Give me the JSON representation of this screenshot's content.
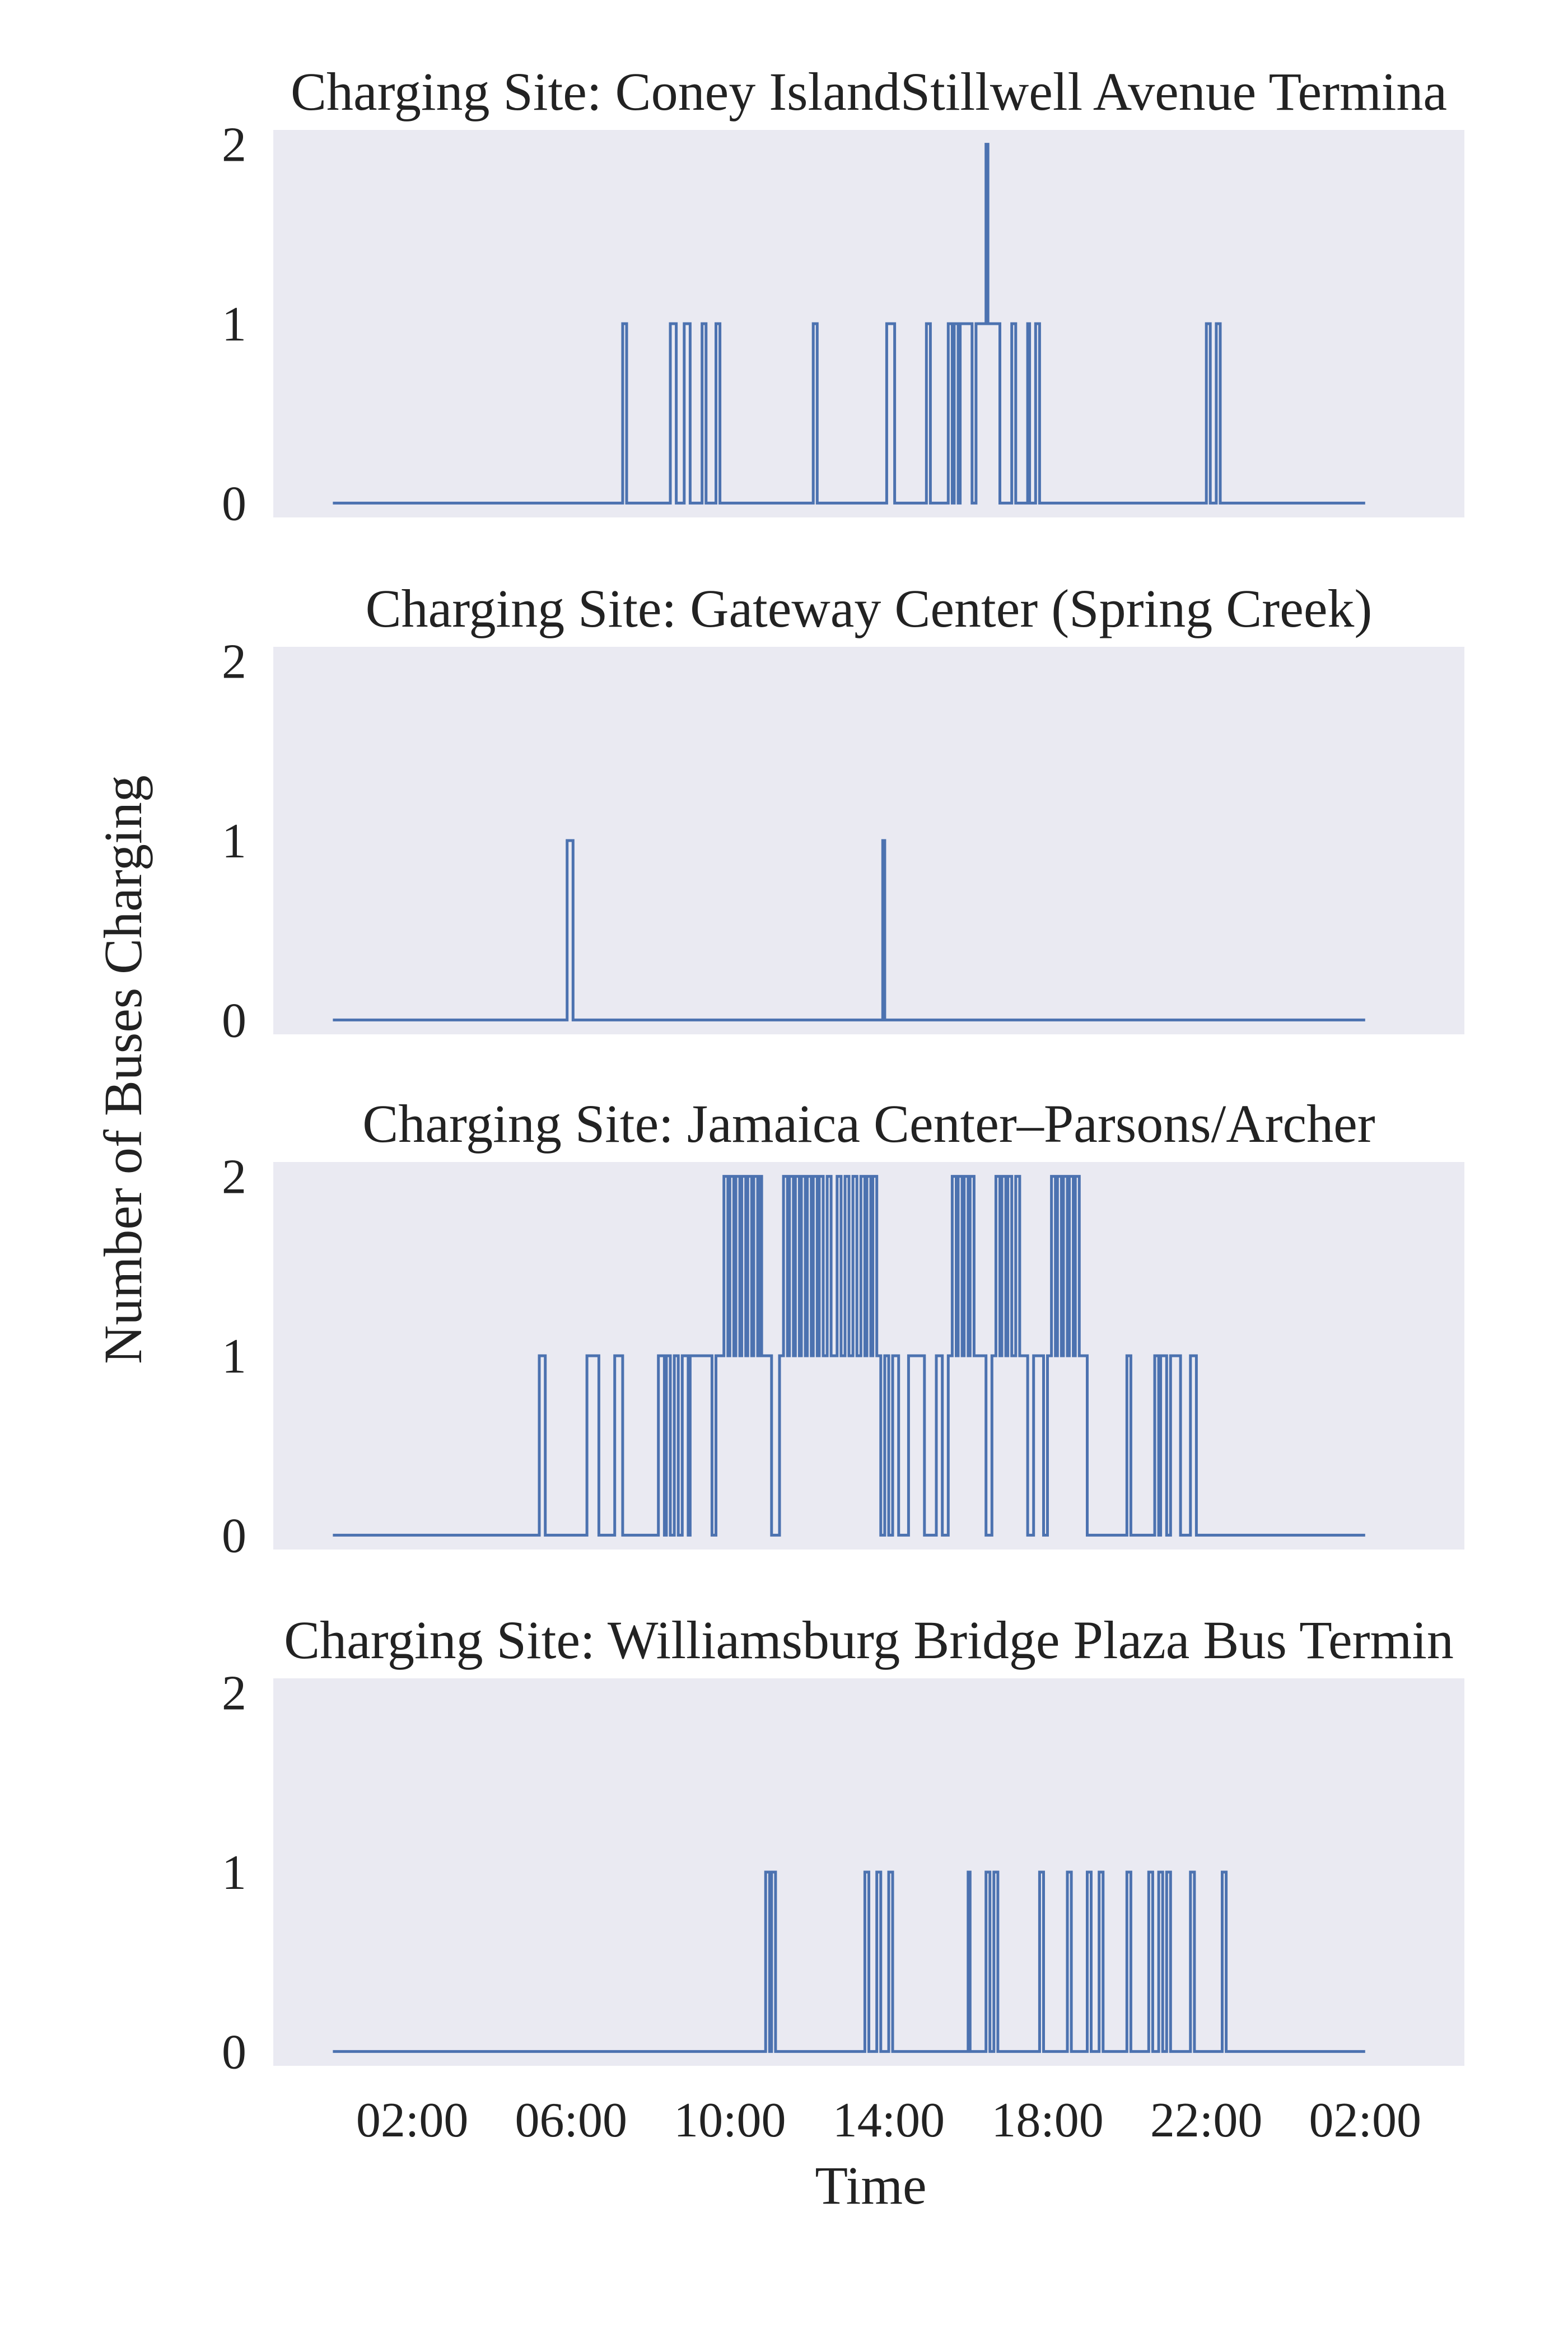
{
  "chart_data": {
    "type": "line",
    "line_style": "step",
    "ylabel": "Number of Buses Charging",
    "xlabel": "Time",
    "x_range_hours": [
      -1.5,
      28.5
    ],
    "x_ticks": [
      {
        "hour": 2,
        "label": "02:00"
      },
      {
        "hour": 6,
        "label": "06:00"
      },
      {
        "hour": 10,
        "label": "10:00"
      },
      {
        "hour": 14,
        "label": "14:00"
      },
      {
        "hour": 18,
        "label": "18:00"
      },
      {
        "hour": 22,
        "label": "22:00"
      },
      {
        "hour": 26,
        "label": "02:00"
      }
    ],
    "y_ticks": [
      {
        "value": 0,
        "label": "0"
      },
      {
        "value": 1,
        "label": "1"
      },
      {
        "value": 2,
        "label": "2"
      }
    ],
    "ylim": [
      -0.08,
      2.08
    ],
    "grid": false,
    "line_color": "#4c72b0",
    "panel_color": "#eaeaf2",
    "panels": [
      {
        "title": "Charging Site: Coney IslandStillwell Avenue Termina",
        "segments": [
          [
            0.0,
            0
          ],
          [
            7.3,
            1
          ],
          [
            7.4,
            0
          ],
          [
            8.5,
            1
          ],
          [
            8.65,
            0
          ],
          [
            8.85,
            1
          ],
          [
            9.0,
            0
          ],
          [
            9.3,
            1
          ],
          [
            9.4,
            0
          ],
          [
            9.65,
            1
          ],
          [
            9.75,
            0
          ],
          [
            12.1,
            1
          ],
          [
            12.2,
            0
          ],
          [
            13.95,
            1
          ],
          [
            14.15,
            0
          ],
          [
            14.95,
            1
          ],
          [
            15.05,
            0
          ],
          [
            15.5,
            1
          ],
          [
            15.6,
            0
          ],
          [
            15.65,
            1
          ],
          [
            15.75,
            0
          ],
          [
            15.8,
            1
          ],
          [
            16.1,
            0
          ],
          [
            16.2,
            1
          ],
          [
            16.45,
            2
          ],
          [
            16.5,
            1
          ],
          [
            16.8,
            0
          ],
          [
            17.1,
            1
          ],
          [
            17.2,
            0
          ],
          [
            17.5,
            1
          ],
          [
            17.55,
            0
          ],
          [
            17.7,
            1
          ],
          [
            17.8,
            0
          ],
          [
            22.0,
            1
          ],
          [
            22.1,
            0
          ],
          [
            22.25,
            1
          ],
          [
            22.35,
            0
          ],
          [
            26.0,
            0
          ]
        ]
      },
      {
        "title": "Charging Site: Gateway Center (Spring Creek)",
        "segments": [
          [
            0.0,
            0
          ],
          [
            5.9,
            1
          ],
          [
            6.05,
            0
          ],
          [
            13.85,
            1
          ],
          [
            13.9,
            0
          ],
          [
            26.0,
            0
          ]
        ]
      },
      {
        "title": "Charging Site: Jamaica Center–Parsons/Archer",
        "segments": [
          [
            0.0,
            0
          ],
          [
            5.2,
            1
          ],
          [
            5.35,
            0
          ],
          [
            6.4,
            1
          ],
          [
            6.7,
            0
          ],
          [
            7.1,
            1
          ],
          [
            7.3,
            0
          ],
          [
            8.2,
            1
          ],
          [
            8.35,
            0
          ],
          [
            8.4,
            1
          ],
          [
            8.5,
            0
          ],
          [
            8.6,
            1
          ],
          [
            8.7,
            0
          ],
          [
            8.8,
            1
          ],
          [
            8.95,
            0
          ],
          [
            9.0,
            1
          ],
          [
            9.55,
            0
          ],
          [
            9.65,
            1
          ],
          [
            9.85,
            2
          ],
          [
            9.95,
            1
          ],
          [
            10.0,
            2
          ],
          [
            10.1,
            1
          ],
          [
            10.15,
            2
          ],
          [
            10.25,
            1
          ],
          [
            10.3,
            2
          ],
          [
            10.4,
            1
          ],
          [
            10.45,
            2
          ],
          [
            10.55,
            1
          ],
          [
            10.6,
            2
          ],
          [
            10.7,
            1
          ],
          [
            10.75,
            2
          ],
          [
            10.8,
            1
          ],
          [
            11.05,
            0
          ],
          [
            11.25,
            1
          ],
          [
            11.35,
            2
          ],
          [
            11.45,
            1
          ],
          [
            11.5,
            2
          ],
          [
            11.6,
            1
          ],
          [
            11.65,
            2
          ],
          [
            11.75,
            1
          ],
          [
            11.8,
            2
          ],
          [
            11.9,
            1
          ],
          [
            11.95,
            2
          ],
          [
            12.05,
            1
          ],
          [
            12.1,
            2
          ],
          [
            12.2,
            1
          ],
          [
            12.25,
            2
          ],
          [
            12.35,
            1
          ],
          [
            12.45,
            2
          ],
          [
            12.55,
            1
          ],
          [
            12.7,
            2
          ],
          [
            12.8,
            1
          ],
          [
            12.9,
            2
          ],
          [
            13.0,
            1
          ],
          [
            13.1,
            2
          ],
          [
            13.2,
            1
          ],
          [
            13.3,
            2
          ],
          [
            13.4,
            1
          ],
          [
            13.45,
            2
          ],
          [
            13.55,
            1
          ],
          [
            13.6,
            2
          ],
          [
            13.7,
            1
          ],
          [
            13.8,
            0
          ],
          [
            13.9,
            1
          ],
          [
            14.0,
            0
          ],
          [
            14.1,
            1
          ],
          [
            14.25,
            0
          ],
          [
            14.5,
            1
          ],
          [
            14.9,
            0
          ],
          [
            15.2,
            1
          ],
          [
            15.35,
            0
          ],
          [
            15.5,
            1
          ],
          [
            15.6,
            2
          ],
          [
            15.7,
            1
          ],
          [
            15.75,
            2
          ],
          [
            15.85,
            1
          ],
          [
            15.9,
            2
          ],
          [
            16.0,
            1
          ],
          [
            16.05,
            2
          ],
          [
            16.15,
            1
          ],
          [
            16.45,
            0
          ],
          [
            16.6,
            1
          ],
          [
            16.7,
            2
          ],
          [
            16.8,
            1
          ],
          [
            16.85,
            2
          ],
          [
            16.95,
            1
          ],
          [
            17.0,
            2
          ],
          [
            17.1,
            1
          ],
          [
            17.2,
            2
          ],
          [
            17.3,
            1
          ],
          [
            17.5,
            0
          ],
          [
            17.65,
            1
          ],
          [
            17.9,
            0
          ],
          [
            18.0,
            1
          ],
          [
            18.1,
            2
          ],
          [
            18.2,
            1
          ],
          [
            18.25,
            2
          ],
          [
            18.35,
            1
          ],
          [
            18.4,
            2
          ],
          [
            18.5,
            1
          ],
          [
            18.55,
            2
          ],
          [
            18.65,
            1
          ],
          [
            18.7,
            2
          ],
          [
            18.8,
            1
          ],
          [
            19.0,
            0
          ],
          [
            20.0,
            1
          ],
          [
            20.1,
            0
          ],
          [
            20.7,
            1
          ],
          [
            20.8,
            0
          ],
          [
            20.85,
            1
          ],
          [
            21.0,
            0
          ],
          [
            21.1,
            1
          ],
          [
            21.35,
            0
          ],
          [
            21.6,
            1
          ],
          [
            21.75,
            0
          ],
          [
            26.0,
            0
          ]
        ]
      },
      {
        "title": "Charging Site: Williamsburg Bridge Plaza Bus Termin",
        "segments": [
          [
            0.0,
            0
          ],
          [
            10.9,
            1
          ],
          [
            11.0,
            0
          ],
          [
            11.05,
            1
          ],
          [
            11.15,
            0
          ],
          [
            13.4,
            1
          ],
          [
            13.5,
            0
          ],
          [
            13.7,
            1
          ],
          [
            13.8,
            0
          ],
          [
            14.0,
            1
          ],
          [
            14.1,
            0
          ],
          [
            16.0,
            1
          ],
          [
            16.05,
            0
          ],
          [
            16.45,
            1
          ],
          [
            16.55,
            0
          ],
          [
            16.65,
            1
          ],
          [
            16.75,
            0
          ],
          [
            17.8,
            1
          ],
          [
            17.9,
            0
          ],
          [
            18.5,
            1
          ],
          [
            18.6,
            0
          ],
          [
            19.0,
            1
          ],
          [
            19.1,
            0
          ],
          [
            19.3,
            1
          ],
          [
            19.4,
            0
          ],
          [
            20.0,
            1
          ],
          [
            20.1,
            0
          ],
          [
            20.55,
            1
          ],
          [
            20.65,
            0
          ],
          [
            20.8,
            1
          ],
          [
            20.9,
            0
          ],
          [
            21.0,
            1
          ],
          [
            21.1,
            0
          ],
          [
            21.6,
            1
          ],
          [
            21.7,
            0
          ],
          [
            22.4,
            1
          ],
          [
            22.5,
            0
          ],
          [
            26.0,
            0
          ]
        ]
      }
    ]
  }
}
